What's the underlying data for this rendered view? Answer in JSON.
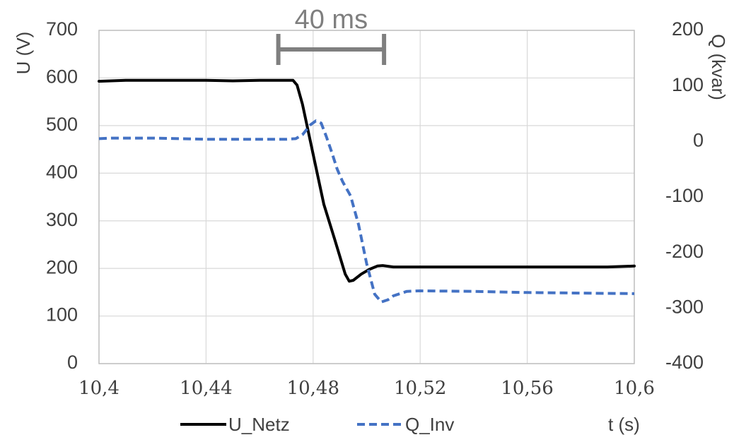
{
  "chart_data": {
    "type": "line",
    "xlabel": "t (s)",
    "ylabel": "U (V)",
    "y2label": "Q (kvar)",
    "xlim": [
      10.4,
      10.6
    ],
    "ylim": [
      0,
      700
    ],
    "y2lim": [
      -400,
      200
    ],
    "grid": true,
    "x_ticks": [
      "10,4",
      "10,44",
      "10,48",
      "10,52",
      "10,56",
      "10,6"
    ],
    "x_tick_values": [
      10.4,
      10.44,
      10.48,
      10.52,
      10.56,
      10.6
    ],
    "y_ticks": [
      "0",
      "100",
      "200",
      "300",
      "400",
      "500",
      "600",
      "700"
    ],
    "y_tick_values": [
      0,
      100,
      200,
      300,
      400,
      500,
      600,
      700
    ],
    "y2_ticks": [
      "-400",
      "-300",
      "-200",
      "-100",
      "0",
      "100",
      "200"
    ],
    "y2_tick_values": [
      -400,
      -300,
      -200,
      -100,
      0,
      100,
      200
    ],
    "legend_position": "bottom",
    "series": [
      {
        "name": "U_Netz",
        "axis": "left",
        "color": "#000000",
        "dash": "solid",
        "x": [
          10.4,
          10.41,
          10.42,
          10.43,
          10.44,
          10.45,
          10.46,
          10.47,
          10.4725,
          10.474,
          10.476,
          10.48,
          10.484,
          10.488,
          10.492,
          10.4935,
          10.495,
          10.498,
          10.501,
          10.504,
          10.506,
          10.51,
          10.52,
          10.53,
          10.54,
          10.55,
          10.56,
          10.57,
          10.58,
          10.59,
          10.6
        ],
        "y": [
          593,
          595,
          595,
          595,
          595,
          594,
          595,
          595,
          595,
          585,
          545,
          440,
          335,
          262,
          188,
          173,
          175,
          188,
          198,
          205,
          206,
          203,
          203,
          203,
          203,
          203,
          203,
          203,
          203,
          203,
          205
        ]
      },
      {
        "name": "Q_Inv",
        "axis": "right",
        "color": "#4472c4",
        "dash": "dashed",
        "x": [
          10.4,
          10.405,
          10.42,
          10.44,
          10.46,
          10.47,
          10.4735,
          10.476,
          10.479,
          10.481,
          10.483,
          10.485,
          10.487,
          10.489,
          10.491,
          10.494,
          10.497,
          10.5,
          10.503,
          10.5055,
          10.508,
          10.51,
          10.515,
          10.52,
          10.54,
          10.56,
          10.58,
          10.6
        ],
        "y": [
          5,
          6,
          6,
          4,
          4,
          4,
          5,
          12,
          30,
          37,
          33,
          8,
          -20,
          -50,
          -72,
          -98,
          -150,
          -220,
          -275,
          -289,
          -285,
          -278,
          -270,
          -269,
          -270,
          -272,
          -273,
          -274
        ]
      }
    ],
    "annotation": {
      "label": "40 ms",
      "x_start": 10.467,
      "x_end": 10.5065,
      "y": 660
    }
  }
}
